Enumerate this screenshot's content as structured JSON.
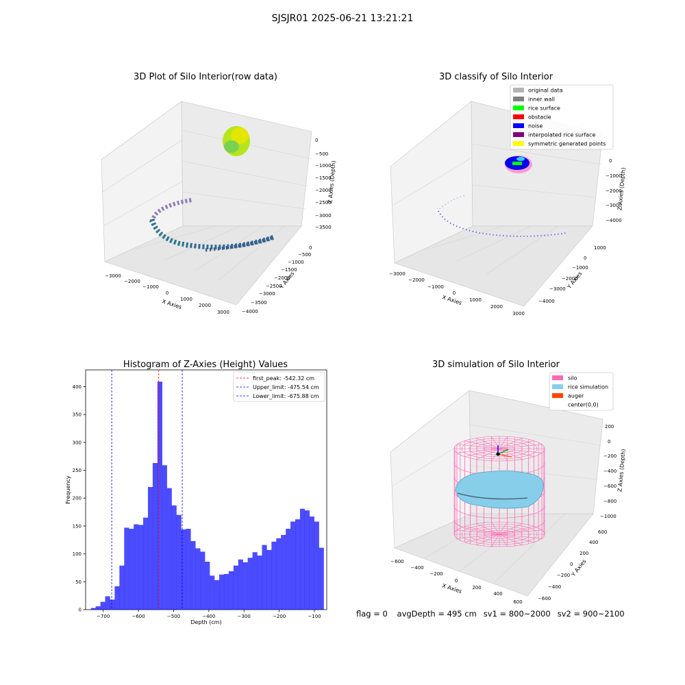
{
  "suptitle": "SJSJR01 2025-06-21 13:21:21",
  "panels": {
    "raw": {
      "title": "3D Plot of Silo Interior(row data)",
      "xlabel": "X Axies",
      "ylabel": "Y Axies",
      "zlabel": "Z Axies (Depth)",
      "xticks": [
        "−3000",
        "−2000",
        "−1000",
        "0",
        "1000",
        "2000",
        "3000"
      ],
      "yticks": [
        "0",
        "−500",
        "−1000",
        "−1500",
        "−2000",
        "−2500",
        "−3000",
        "−3500",
        "−4000"
      ],
      "zticks": [
        "0",
        "−500",
        "−1000",
        "−1500",
        "−2000",
        "−2500",
        "−3000",
        "−3500"
      ]
    },
    "classify": {
      "title": "3D classify of Silo Interior",
      "xlabel": "X Axies",
      "ylabel": "Y Axies",
      "zlabel": "Z Axies (Depth)",
      "xticks": [
        "−3000",
        "−2000",
        "−1000",
        "0",
        "1000",
        "2000",
        "3000"
      ],
      "yticks": [
        "1000",
        "0",
        "−1000",
        "−2000",
        "−3000",
        "−4000"
      ],
      "zticks": [
        "0",
        "−1000",
        "−2000",
        "−3000",
        "−4000"
      ],
      "legend": [
        {
          "label": "original data",
          "color": "#b3b3b3"
        },
        {
          "label": "inner wall",
          "color": "#808080"
        },
        {
          "label": "rice surface",
          "color": "#00ff00"
        },
        {
          "label": "obstacle",
          "color": "#ff0000"
        },
        {
          "label": "noise",
          "color": "#0000ff"
        },
        {
          "label": "interpolated rice surface",
          "color": "#800080"
        },
        {
          "label": "symmetric generated points",
          "color": "#ffff00"
        }
      ]
    },
    "simulation": {
      "title": "3D simulation of Silo Interior",
      "xlabel": "X Axies",
      "ylabel": "Y Axies",
      "zlabel": "Z Axies (Depth)",
      "xticks": [
        "−600",
        "−400",
        "−200",
        "0",
        "200",
        "400",
        "600"
      ],
      "yticks": [
        "600",
        "400",
        "200",
        "0",
        "−200",
        "−400",
        "−600"
      ],
      "zticks": [
        "200",
        "0",
        "−200",
        "−400",
        "−600",
        "−800",
        "−1000"
      ],
      "legend": [
        {
          "label": "silo",
          "color": "#ff69b4"
        },
        {
          "label": "rice simulation",
          "color": "#87ceeb"
        },
        {
          "label": "auger",
          "color": "#ff4500"
        },
        {
          "label": "center(0,0)",
          "color": ""
        }
      ]
    }
  },
  "chart_data": {
    "type": "bar",
    "title": "Histogram of Z-Axies (Height) Values",
    "xlabel": "Depth (cm)",
    "ylabel": "Frequency",
    "xlim": [
      -750,
      -65
    ],
    "ylim": [
      0,
      430
    ],
    "xticks": [
      -700,
      -600,
      -500,
      -400,
      -300,
      -200,
      -100
    ],
    "yticks": [
      0,
      50,
      100,
      150,
      200,
      250,
      300,
      350,
      400
    ],
    "bar_color": "#0000ff",
    "bins": {
      "start": -735,
      "width": 13.5,
      "values": [
        3,
        6,
        14,
        24,
        18,
        42,
        79,
        147,
        145,
        153,
        152,
        165,
        220,
        263,
        409,
        259,
        218,
        187,
        170,
        144,
        145,
        123,
        110,
        104,
        86,
        61,
        53,
        63,
        64,
        69,
        79,
        90,
        85,
        93,
        103,
        97,
        116,
        107,
        122,
        128,
        134,
        145,
        158,
        162,
        181,
        178,
        167,
        158,
        111
      ]
    },
    "vlines": [
      {
        "label": "first_peak: -542.32 cm",
        "x": -542.32,
        "color": "#ff0000"
      },
      {
        "label": "Upper_limit: -475.54 cm",
        "x": -475.54,
        "color": "#0000ff"
      },
      {
        "label": "Lower_limit: -675.88 cm",
        "x": -675.88,
        "color": "#0000ff"
      }
    ],
    "legend_position": "upper right"
  },
  "footer": {
    "flag": "flag = 0",
    "avg_depth": "avgDepth = 495 cm",
    "sv1": "sv1 = 800~2000",
    "sv2": "sv2 = 900~2100"
  }
}
